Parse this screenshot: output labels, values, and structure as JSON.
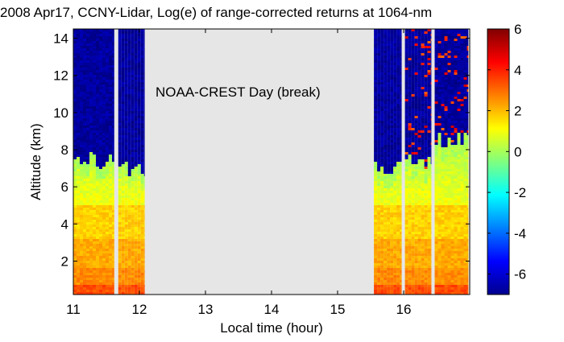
{
  "chart_data": {
    "type": "heatmap",
    "title": "2008 Apr17, CCNY-Lidar, Log(e) of range-corrected returns at 1064-nm",
    "xlabel": "Local time (hour)",
    "ylabel": "Altitude (km)",
    "xlim": [
      11.0,
      17.0
    ],
    "ylim": [
      0.2,
      14.5
    ],
    "xticks": [
      11,
      12,
      13,
      14,
      15,
      16
    ],
    "yticks": [
      2,
      4,
      6,
      8,
      10,
      12,
      14
    ],
    "colorbar": {
      "min": -7,
      "max": 6,
      "ticks": [
        6,
        4,
        2,
        0,
        -2,
        -4,
        -6
      ],
      "colormap": "jet"
    },
    "annotation": "NOAA-CREST Day (break)",
    "no_data_color": "#e6e6e6",
    "data_blocks": [
      {
        "x_start": 11.0,
        "x_end": 11.62,
        "cloud_top_km": 7.4
      },
      {
        "x_start": 11.68,
        "x_end": 12.08,
        "cloud_top_km": 7.0
      },
      {
        "x_start": 15.55,
        "x_end": 15.97,
        "cloud_top_km": 7.0
      },
      {
        "x_start": 16.02,
        "x_end": 16.42,
        "cloud_top_km": 7.3
      },
      {
        "x_start": 16.47,
        "x_end": 16.98,
        "cloud_top_km": 8.5
      }
    ]
  }
}
